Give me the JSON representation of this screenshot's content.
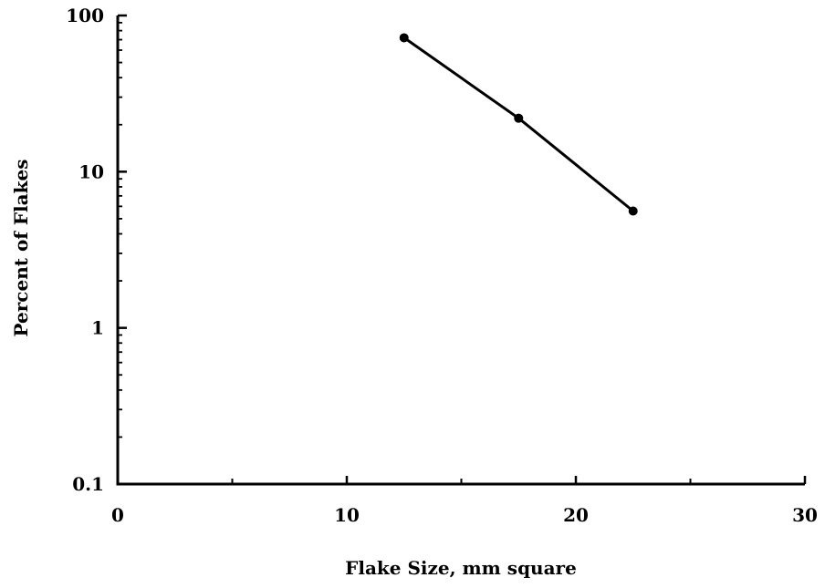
{
  "chart_data": {
    "type": "line",
    "title": "",
    "xlabel": "Flake Size, mm square",
    "ylabel": "Percent of Flakes",
    "xlim": [
      0,
      30
    ],
    "ylim": [
      0.1,
      100
    ],
    "yscale": "log",
    "grid": false,
    "x_ticks": [
      0,
      10,
      20,
      30
    ],
    "x_minor_ticks": [
      5,
      15,
      25
    ],
    "x_tick_labels": [
      "0",
      "10",
      "20",
      "30"
    ],
    "y_ticks": [
      0.1,
      1,
      10,
      100
    ],
    "y_tick_labels": [
      "0.1",
      "1",
      "10",
      "100"
    ],
    "series": [
      {
        "x": [
          12.5,
          17.5,
          22.5
        ],
        "y": [
          72,
          22,
          5.6
        ]
      }
    ],
    "colors": {
      "line": "#000000",
      "marker": "#000000",
      "axis": "#000000",
      "background": "#ffffff"
    }
  }
}
